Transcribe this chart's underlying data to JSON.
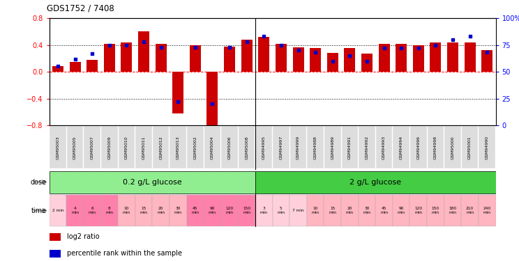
{
  "title": "GDS1752 / 7408",
  "samples": [
    "GSM95003",
    "GSM95005",
    "GSM95007",
    "GSM95009",
    "GSM95010",
    "GSM95011",
    "GSM95012",
    "GSM95013",
    "GSM95002",
    "GSM95004",
    "GSM95006",
    "GSM95008",
    "GSM94995",
    "GSM94997",
    "GSM94999",
    "GSM94988",
    "GSM94989",
    "GSM94991",
    "GSM94992",
    "GSM94993",
    "GSM94994",
    "GSM94996",
    "GSM94998",
    "GSM95000",
    "GSM95001",
    "GSM94990"
  ],
  "log2_ratio": [
    0.08,
    0.15,
    0.18,
    0.42,
    0.44,
    0.6,
    0.42,
    -0.62,
    0.4,
    -0.82,
    0.38,
    0.48,
    0.52,
    0.42,
    0.37,
    0.35,
    0.28,
    0.35,
    0.27,
    0.42,
    0.42,
    0.4,
    0.44,
    0.44,
    0.44,
    0.32
  ],
  "percentile": [
    55,
    62,
    67,
    75,
    75,
    78,
    73,
    22,
    73,
    20,
    73,
    78,
    83,
    75,
    70,
    68,
    60,
    65,
    60,
    72,
    72,
    72,
    75,
    80,
    83,
    68
  ],
  "dose_labels": [
    "0.2 g/L glucose",
    "2 g/L glucose"
  ],
  "dose_color1": "#90EE90",
  "dose_color2": "#44CC44",
  "time_labels": [
    "2 min",
    "4\nmin",
    "6\nmin",
    "8\nmin",
    "10\nmin",
    "15\nmin",
    "20\nmin",
    "30\nmin",
    "45\nmin",
    "90\nmin",
    "120\nmin",
    "150\nmin",
    "3\nmin",
    "5\nmin",
    "7 min",
    "10\nmin",
    "15\nmin",
    "20\nmin",
    "30\nmin",
    "45\nmin",
    "90\nmin",
    "120\nmin",
    "150\nmin",
    "180\nmin",
    "210\nmin",
    "240\nmin"
  ],
  "time_colors": [
    "#FFD0DC",
    "#FF80AA",
    "#FF80AA",
    "#FF80AA",
    "#FFB6C1",
    "#FFB6C1",
    "#FFB6C1",
    "#FFB6C1",
    "#FF80AA",
    "#FF80AA",
    "#FF80AA",
    "#FF80AA",
    "#FFD0DC",
    "#FFD0DC",
    "#FFD0DC",
    "#FFB6C1",
    "#FFB6C1",
    "#FFB6C1",
    "#FFB6C1",
    "#FFB6C1",
    "#FFB6C1",
    "#FFB6C1",
    "#FFB6C1",
    "#FFB6C1",
    "#FFB6C1",
    "#FFB6C1"
  ],
  "bar_color": "#CC0000",
  "dot_color": "#0000CC",
  "ylim_left": [
    -0.8,
    0.8
  ],
  "ylim_right": [
    0,
    100
  ],
  "yticks_left": [
    -0.8,
    -0.4,
    0.0,
    0.4,
    0.8
  ],
  "yticks_right": [
    0,
    25,
    50,
    75,
    100
  ],
  "ytick_labels_right": [
    "0",
    "25",
    "50",
    "75",
    "100%"
  ],
  "hlines": [
    0.4,
    0.0,
    -0.4
  ],
  "hline_styles": [
    "dotted",
    "dashed",
    "dotted"
  ],
  "hline_colors": [
    "black",
    "red",
    "black"
  ],
  "group1_count": 12,
  "group2_count": 14,
  "sample_label_bg": "#DDDDDD"
}
